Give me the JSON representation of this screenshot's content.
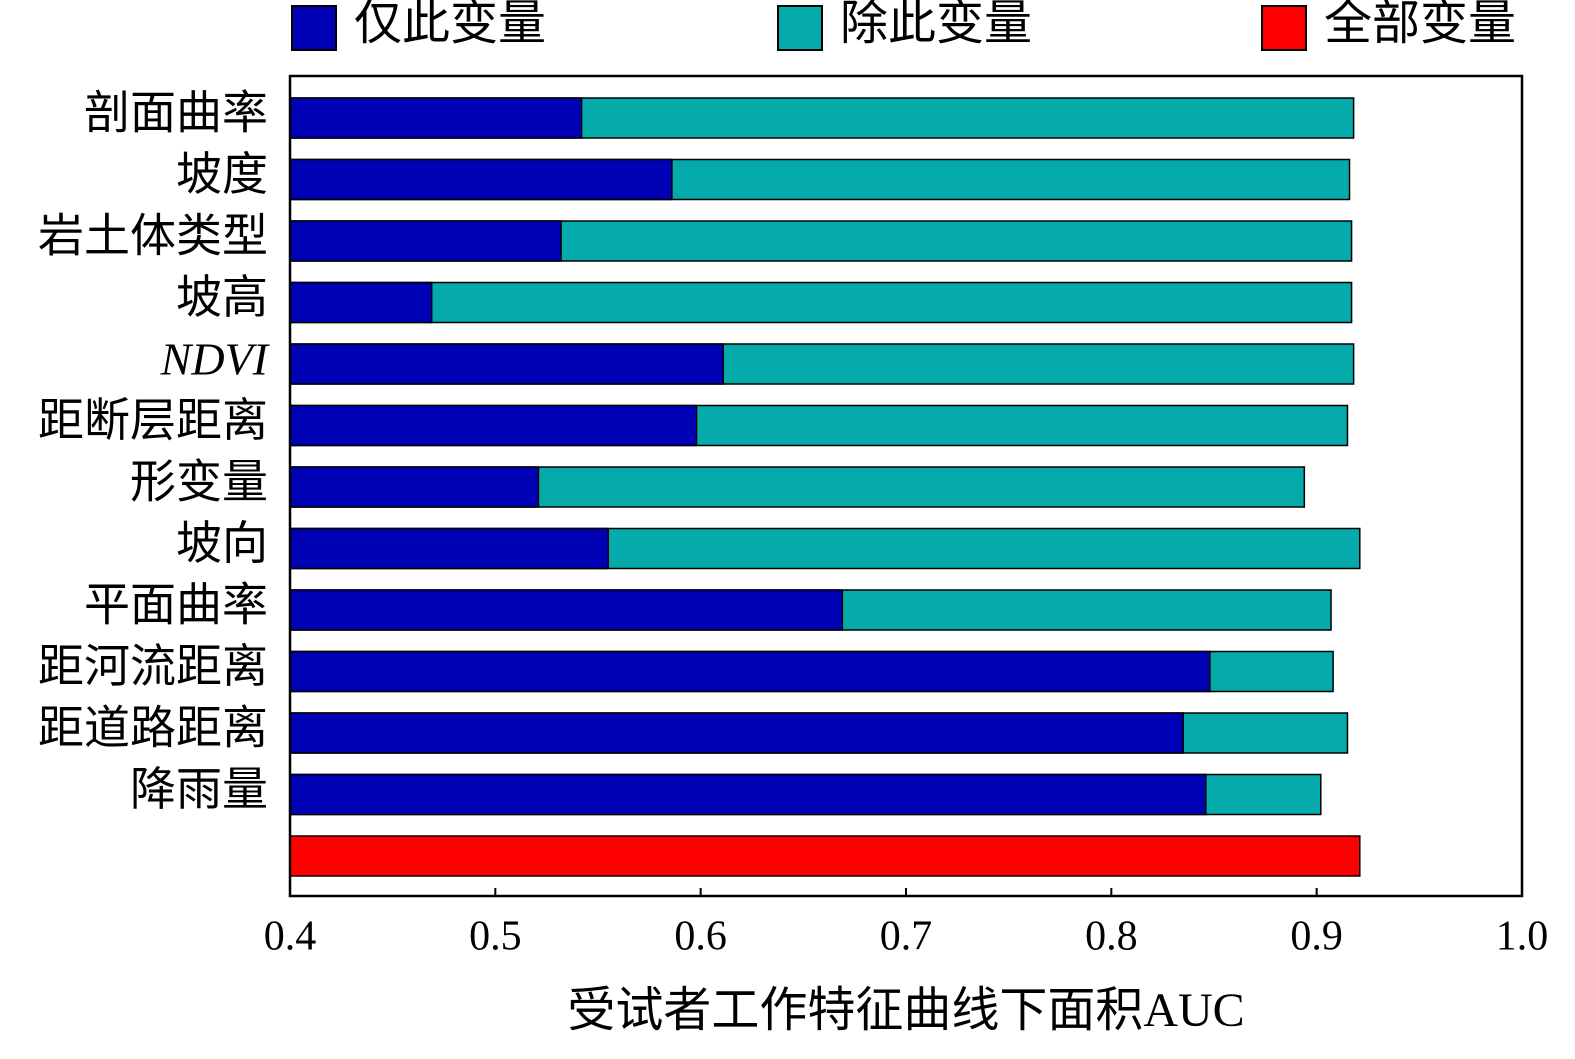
{
  "chart_data": {
    "type": "bar",
    "orientation": "horizontal",
    "overlay": true,
    "categories": [
      "剖面曲率",
      "坡度",
      "岩土体类型",
      "坡高",
      "NDVI",
      "距断层距离",
      "形变量",
      "坡向",
      "平面曲率",
      "距河流距离",
      "距道路距离",
      "降雨量",
      null
    ],
    "series": [
      {
        "name": "仅此变量",
        "color": "#0000b4",
        "values": [
          0.542,
          0.586,
          0.532,
          0.469,
          0.611,
          0.598,
          0.521,
          0.555,
          0.669,
          0.848,
          0.835,
          0.846,
          null
        ]
      },
      {
        "name": "除此变量",
        "color": "#05aaaa",
        "values": [
          0.918,
          0.916,
          0.917,
          0.917,
          0.918,
          0.915,
          0.894,
          0.921,
          0.907,
          0.908,
          0.915,
          0.902,
          null
        ]
      },
      {
        "name": "全部变量",
        "color": "#ff0000",
        "values": [
          null,
          null,
          null,
          null,
          null,
          null,
          null,
          null,
          null,
          null,
          null,
          null,
          0.921
        ]
      }
    ],
    "x_label": "受试者工作特征曲线下面积AUC",
    "xlim": [
      0.4,
      1.0
    ],
    "xticks": [
      0.4,
      0.5,
      0.6,
      0.7,
      0.8,
      0.9,
      {
        "value": 1.0,
        "label": "1.0"
      }
    ],
    "legend": "top"
  }
}
